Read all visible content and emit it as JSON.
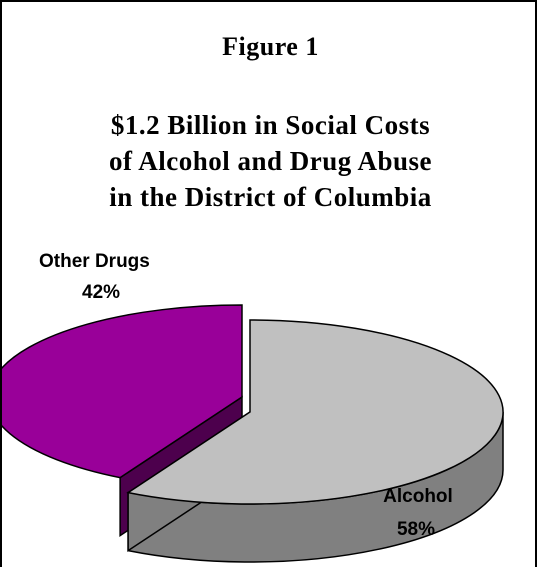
{
  "figure_label": "Figure 1",
  "title_lines": [
    "$1.2 Billion in Social Costs",
    "of Alcohol and Drug Abuse",
    "in the District of Columbia"
  ],
  "chart_data": {
    "type": "pie",
    "title": "$1.2 Billion in Social Costs of Alcohol and Drug Abuse in the District of Columbia",
    "categories": [
      "Other Drugs",
      "Alcohol"
    ],
    "values": [
      42,
      58
    ],
    "value_labels": [
      "42%",
      "58%"
    ],
    "colors": {
      "Other Drugs": "#990099",
      "Alcohol": "#c0c0c0"
    },
    "side_colors": {
      "Other Drugs": "#4d004d",
      "Alcohol": "#808080"
    },
    "style": "3d-exploded",
    "legend": "none"
  }
}
